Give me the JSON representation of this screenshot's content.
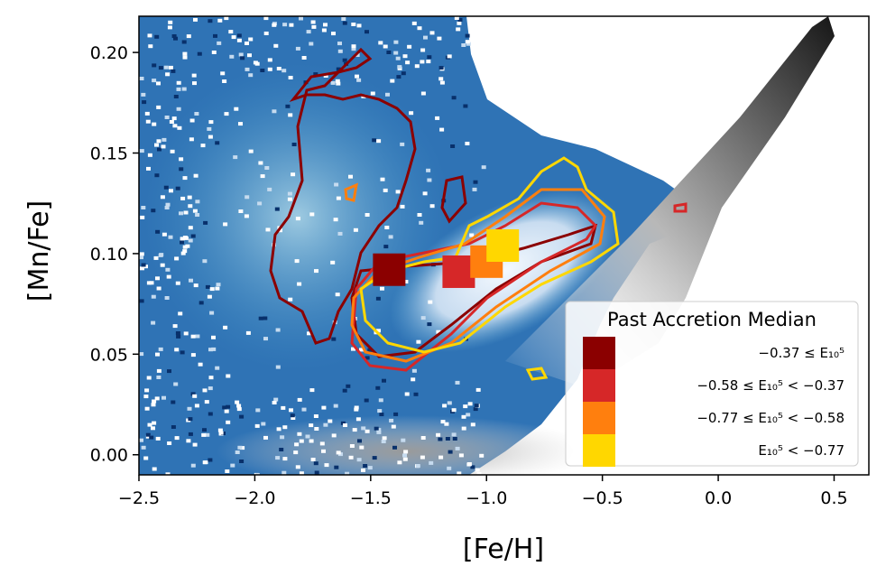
{
  "chart_data": {
    "type": "scatter",
    "xlabel": "[Fe/H]",
    "ylabel": "[Mn/Fe]",
    "xlim": [
      -2.5,
      0.65
    ],
    "ylim": [
      -0.01,
      0.218
    ],
    "x_ticks": [
      {
        "value": -2.5,
        "label": "−2.5"
      },
      {
        "value": -2.0,
        "label": "−2.0"
      },
      {
        "value": -1.5,
        "label": "−1.5"
      },
      {
        "value": -1.0,
        "label": "−1.0"
      },
      {
        "value": -0.5,
        "label": "−0.5"
      },
      {
        "value": 0.0,
        "label": "0.0"
      },
      {
        "value": 0.5,
        "label": "0.5"
      }
    ],
    "y_ticks": [
      {
        "value": 0.0,
        "label": "0.00"
      },
      {
        "value": 0.05,
        "label": "0.05"
      },
      {
        "value": 0.1,
        "label": "0.10"
      },
      {
        "value": 0.15,
        "label": "0.15"
      },
      {
        "value": 0.2,
        "label": "0.20"
      }
    ],
    "grid": false,
    "legend": {
      "title": "Past Accretion Median",
      "placement": "lower-right",
      "entries": [
        {
          "label": "−0.37 ≤ E₁₀⁵",
          "color": "#8b0000"
        },
        {
          "label": "−0.58 ≤ E₁₀⁵ < −0.37",
          "color": "#d62728"
        },
        {
          "label": "−0.77 ≤ E₁₀⁵ < −0.58",
          "color": "#ff7f0e"
        },
        {
          "label": "E₁₀⁵ < −0.77",
          "color": "#ffd700"
        }
      ]
    },
    "medians": [
      {
        "x": -1.42,
        "y": 0.092,
        "color": "#8b0000"
      },
      {
        "x": -1.12,
        "y": 0.091,
        "color": "#d62728"
      },
      {
        "x": -1.0,
        "y": 0.096,
        "color": "#ff7f0e"
      },
      {
        "x": -0.93,
        "y": 0.104,
        "color": "#ffd700"
      }
    ],
    "background_colormaps": [
      "Blues",
      "Greys"
    ]
  }
}
